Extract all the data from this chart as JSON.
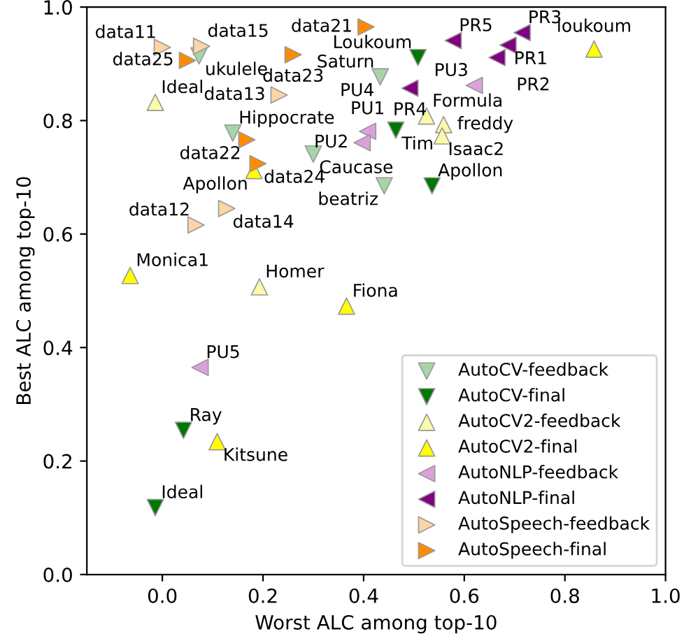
{
  "chart_data": {
    "type": "scatter",
    "xlabel": "Worst ALC among top-10",
    "ylabel": "Best ALC among top-10",
    "xlim": [
      -0.15,
      1.0
    ],
    "ylim": [
      0.0,
      1.0
    ],
    "xticks": [
      {
        "value": 0,
        "label": "0.0"
      },
      0.2,
      0.4,
      0.6,
      0.8,
      {
        "value": 1,
        "label": "1.0"
      }
    ],
    "yticks": [
      {
        "value": 0,
        "label": "0.0"
      },
      0.2,
      0.4,
      0.6,
      0.8,
      {
        "value": 1,
        "label": "1.0"
      }
    ],
    "grid": false,
    "legend": "bottom right",
    "series": [
      {
        "name": "AutoCV-feedback",
        "color": "#a8d5a8",
        "marker": "triangle_down",
        "x": [
          0.073,
          0.14,
          0.3,
          0.433,
          0.441
        ],
        "values": [
          0.914,
          0.778,
          0.741,
          0.877,
          0.685
        ]
      },
      {
        "name": "AutoCV-final",
        "color": "#007700",
        "marker": "triangle_down",
        "x": [
          0.508,
          0.464,
          0.536,
          0.042,
          -0.014
        ],
        "values": [
          0.911,
          0.783,
          0.685,
          0.254,
          0.118
        ]
      },
      {
        "name": "AutoCV2-feedback",
        "color": "#fafaaa",
        "marker": "triangle_up",
        "x": [
          -0.014,
          0.193,
          0.525,
          0.559,
          0.556
        ],
        "values": [
          0.832,
          0.507,
          0.808,
          0.793,
          0.773
        ]
      },
      {
        "name": "AutoCV2-final",
        "color": "#ffff00",
        "marker": "triangle_up",
        "x": [
          0.858,
          0.182,
          -0.064,
          0.366,
          0.109
        ],
        "values": [
          0.926,
          0.712,
          0.527,
          0.473,
          0.234
        ]
      },
      {
        "name": "AutoNLP-feedback",
        "color": "#dda0dd",
        "marker": "triangle_left",
        "x": [
          0.408,
          0.397,
          0.62,
          0.075
        ],
        "values": [
          0.781,
          0.761,
          0.862,
          0.365
        ]
      },
      {
        "name": "AutoNLP-final",
        "color": "#800080",
        "marker": "triangle_left",
        "x": [
          0.578,
          0.687,
          0.715,
          0.665,
          0.492
        ],
        "values": [
          0.941,
          0.933,
          0.955,
          0.911,
          0.857
        ]
      },
      {
        "name": "AutoSpeech-feedback",
        "color": "#fdd5a6",
        "marker": "triangle_right",
        "x": [
          0.0,
          0.078,
          0.232,
          0.128,
          0.067
        ],
        "values": [
          0.929,
          0.931,
          0.845,
          0.645,
          0.616
        ]
      },
      {
        "name": "AutoSpeech-final",
        "color": "#ff8c00",
        "marker": "triangle_right",
        "x": [
          0.405,
          0.26,
          0.05,
          0.168,
          0.19
        ],
        "values": [
          0.965,
          0.916,
          0.906,
          0.766,
          0.724
        ]
      }
    ],
    "annotations": [
      {
        "text": "ukulele",
        "x": 0.073,
        "y": 0.914
      },
      {
        "text": "Hippocrate",
        "x": 0.14,
        "y": 0.778
      },
      {
        "text": "Caucase",
        "x": 0.3,
        "y": 0.741
      },
      {
        "text": "Saturn",
        "x": 0.433,
        "y": 0.877
      },
      {
        "text": "beatriz",
        "x": 0.441,
        "y": 0.685
      },
      {
        "text": "Loukoum",
        "x": 0.508,
        "y": 0.911
      },
      {
        "text": "Tim",
        "x": 0.464,
        "y": 0.783
      },
      {
        "text": "Apollon",
        "x": 0.536,
        "y": 0.685
      },
      {
        "text": "Ray",
        "x": 0.042,
        "y": 0.254
      },
      {
        "text": "Ideal",
        "x": -0.014,
        "y": 0.118
      },
      {
        "text": "Ideal",
        "x": -0.014,
        "y": 0.832
      },
      {
        "text": "Homer",
        "x": 0.193,
        "y": 0.507
      },
      {
        "text": "Formula",
        "x": 0.525,
        "y": 0.808
      },
      {
        "text": "freddy",
        "x": 0.559,
        "y": 0.793
      },
      {
        "text": "Isaac2",
        "x": 0.556,
        "y": 0.773
      },
      {
        "text": "loukoum",
        "x": 0.858,
        "y": 0.926
      },
      {
        "text": "Apollon",
        "x": 0.182,
        "y": 0.712
      },
      {
        "text": "Monica1",
        "x": -0.064,
        "y": 0.527
      },
      {
        "text": "Fiona",
        "x": 0.366,
        "y": 0.473
      },
      {
        "text": "Kitsune",
        "x": 0.109,
        "y": 0.234
      },
      {
        "text": "PU1",
        "x": 0.408,
        "y": 0.781
      },
      {
        "text": "PU2",
        "x": 0.397,
        "y": 0.761
      },
      {
        "text": "PU3",
        "x": 0.62,
        "y": 0.862
      },
      {
        "text": "PU4",
        "x": 0.433,
        "y": 0.877
      },
      {
        "text": "PU5",
        "x": 0.075,
        "y": 0.365
      },
      {
        "text": "PR5",
        "x": 0.578,
        "y": 0.941
      },
      {
        "text": "PR1",
        "x": 0.687,
        "y": 0.933
      },
      {
        "text": "PR3",
        "x": 0.715,
        "y": 0.955
      },
      {
        "text": "PR2",
        "x": 0.665,
        "y": 0.911
      },
      {
        "text": "PR4",
        "x": 0.492,
        "y": 0.857
      },
      {
        "text": "data11",
        "x": 0.0,
        "y": 0.929
      },
      {
        "text": "data15",
        "x": 0.078,
        "y": 0.931
      },
      {
        "text": "data13",
        "x": 0.232,
        "y": 0.845
      },
      {
        "text": "data14",
        "x": 0.128,
        "y": 0.645
      },
      {
        "text": "data12",
        "x": 0.067,
        "y": 0.616
      },
      {
        "text": "data21",
        "x": 0.405,
        "y": 0.965
      },
      {
        "text": "data23",
        "x": 0.26,
        "y": 0.916
      },
      {
        "text": "data25",
        "x": 0.05,
        "y": 0.906
      },
      {
        "text": "data22",
        "x": 0.168,
        "y": 0.766
      },
      {
        "text": "data24",
        "x": 0.19,
        "y": 0.724
      }
    ]
  }
}
